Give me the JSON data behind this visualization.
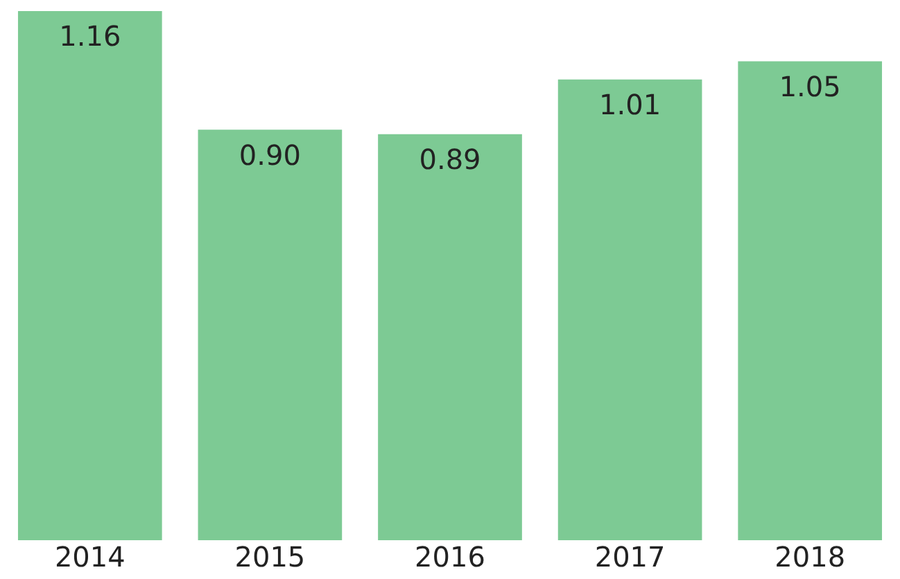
{
  "chart_data": {
    "type": "bar",
    "categories": [
      "2014",
      "2015",
      "2016",
      "2017",
      "2018"
    ],
    "values": [
      1.16,
      0.9,
      0.89,
      1.01,
      1.05
    ],
    "value_labels": [
      "1.16",
      "0.90",
      "0.89",
      "1.01",
      "1.05"
    ],
    "color": "#7dca94",
    "grid": false,
    "legend": false
  }
}
